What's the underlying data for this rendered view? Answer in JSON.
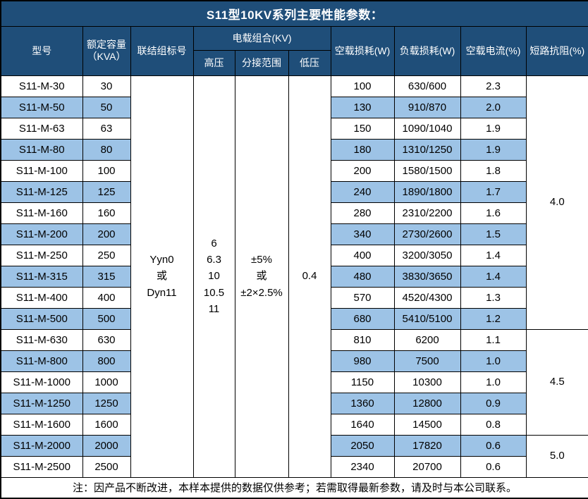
{
  "title": "S11型10KV系列主要性能参数：",
  "header": {
    "model": "型号",
    "capacity_line1": "额定容量",
    "capacity_line2": "（KVA）",
    "connection": "联结组标号",
    "voltage_combo": "电载组合(KV)",
    "high_voltage": "高压",
    "tap_range": "分接范围",
    "low_voltage": "低压",
    "no_load_loss": "空载损耗(W)",
    "load_loss": "负载损耗(W)",
    "no_load_current": "空载电流(%)",
    "impedance": "短路抗阻(%)"
  },
  "merged": {
    "connection_lines": [
      "Yyn0",
      "或",
      "Dyn11"
    ],
    "high_voltage_lines": [
      "6",
      "6.3",
      "10",
      "10.5",
      "11"
    ],
    "tap_range_lines": [
      "±5%",
      "或",
      "±2×2.5%"
    ],
    "low_voltage": "0.4"
  },
  "rows": [
    {
      "model": "S11-M-30",
      "capacity": "30",
      "no_load_loss": "100",
      "load_loss": "630/600",
      "no_load_current": "2.3"
    },
    {
      "model": "S11-M-50",
      "capacity": "50",
      "no_load_loss": "130",
      "load_loss": "910/870",
      "no_load_current": "2.0"
    },
    {
      "model": "S11-M-63",
      "capacity": "63",
      "no_load_loss": "150",
      "load_loss": "1090/1040",
      "no_load_current": "1.9"
    },
    {
      "model": "S11-M-80",
      "capacity": "80",
      "no_load_loss": "180",
      "load_loss": "1310/1250",
      "no_load_current": "1.9"
    },
    {
      "model": "S11-M-100",
      "capacity": "100",
      "no_load_loss": "200",
      "load_loss": "1580/1500",
      "no_load_current": "1.8"
    },
    {
      "model": "S11-M-125",
      "capacity": "125",
      "no_load_loss": "240",
      "load_loss": "1890/1800",
      "no_load_current": "1.7"
    },
    {
      "model": "S11-M-160",
      "capacity": "160",
      "no_load_loss": "280",
      "load_loss": "2310/2200",
      "no_load_current": "1.6"
    },
    {
      "model": "S11-M-200",
      "capacity": "200",
      "no_load_loss": "340",
      "load_loss": "2730/2600",
      "no_load_current": "1.5"
    },
    {
      "model": "S11-M-250",
      "capacity": "250",
      "no_load_loss": "400",
      "load_loss": "3200/3050",
      "no_load_current": "1.4"
    },
    {
      "model": "S11-M-315",
      "capacity": "315",
      "no_load_loss": "480",
      "load_loss": "3830/3650",
      "no_load_current": "1.4"
    },
    {
      "model": "S11-M-400",
      "capacity": "400",
      "no_load_loss": "570",
      "load_loss": "4520/4300",
      "no_load_current": "1.3"
    },
    {
      "model": "S11-M-500",
      "capacity": "500",
      "no_load_loss": "680",
      "load_loss": "5410/5100",
      "no_load_current": "1.2"
    },
    {
      "model": "S11-M-630",
      "capacity": "630",
      "no_load_loss": "810",
      "load_loss": "6200",
      "no_load_current": "1.1"
    },
    {
      "model": "S11-M-800",
      "capacity": "800",
      "no_load_loss": "980",
      "load_loss": "7500",
      "no_load_current": "1.0"
    },
    {
      "model": "S11-M-1000",
      "capacity": "1000",
      "no_load_loss": "1150",
      "load_loss": "10300",
      "no_load_current": "1.0"
    },
    {
      "model": "S11-M-1250",
      "capacity": "1250",
      "no_load_loss": "1360",
      "load_loss": "12800",
      "no_load_current": "0.9"
    },
    {
      "model": "S11-M-1600",
      "capacity": "1600",
      "no_load_loss": "1640",
      "load_loss": "14500",
      "no_load_current": "0.8"
    },
    {
      "model": "S11-M-2000",
      "capacity": "2000",
      "no_load_loss": "2050",
      "load_loss": "17820",
      "no_load_current": "0.6"
    },
    {
      "model": "S11-M-2500",
      "capacity": "2500",
      "no_load_loss": "2340",
      "load_loss": "20700",
      "no_load_current": "0.6"
    }
  ],
  "impedance_groups": [
    {
      "value": "4.0",
      "row_span": 12
    },
    {
      "value": "4.5",
      "row_span": 5
    },
    {
      "value": "5.0",
      "row_span": 2
    }
  ],
  "note": "注：因产品不断改进，本样本提供的数据仅供参考；若需取得最新参数，请及时与本公司联系。",
  "colors": {
    "header_bg": "#1F4E79",
    "stripe_bg": "#9DC3E6",
    "border": "#000000"
  }
}
